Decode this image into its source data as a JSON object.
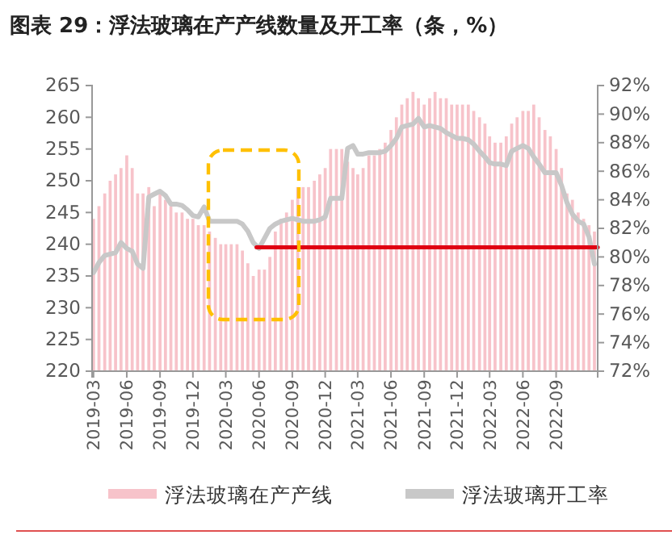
{
  "chart_data": {
    "type": "bar",
    "title": "图表 29：浮法玻璃在产产线数量及开工率（条，%）",
    "x": [
      "2019-03-01",
      "2019-03-16",
      "2019-04-01",
      "2019-04-16",
      "2019-05-01",
      "2019-05-16",
      "2019-06-01",
      "2019-06-16",
      "2019-07-01",
      "2019-07-16",
      "2019-08-01",
      "2019-08-16",
      "2019-09-01",
      "2019-09-16",
      "2019-10-01",
      "2019-10-16",
      "2019-11-01",
      "2019-11-16",
      "2019-12-01",
      "2019-12-16",
      "2020-01-01",
      "2020-01-16",
      "2020-02-01",
      "2020-02-16",
      "2020-03-01",
      "2020-03-16",
      "2020-04-01",
      "2020-04-16",
      "2020-05-01",
      "2020-05-16",
      "2020-06-01",
      "2020-06-16",
      "2020-07-01",
      "2020-07-16",
      "2020-08-01",
      "2020-08-16",
      "2020-09-01",
      "2020-09-16",
      "2020-10-01",
      "2020-10-16",
      "2020-11-01",
      "2020-11-16",
      "2020-12-01",
      "2020-12-16",
      "2021-01-01",
      "2021-01-16",
      "2021-02-01",
      "2021-02-16",
      "2021-03-01",
      "2021-03-16",
      "2021-04-01",
      "2021-04-16",
      "2021-05-01",
      "2021-05-16",
      "2021-06-01",
      "2021-06-16",
      "2021-07-01",
      "2021-07-16",
      "2021-08-01",
      "2021-08-16",
      "2021-09-01",
      "2021-09-16",
      "2021-10-01",
      "2021-10-16",
      "2021-11-01",
      "2021-11-16",
      "2021-12-01",
      "2021-12-16",
      "2022-01-01",
      "2022-01-16",
      "2022-02-01",
      "2022-02-16",
      "2022-03-01",
      "2022-03-16",
      "2022-04-01",
      "2022-04-16",
      "2022-05-01",
      "2022-05-16",
      "2022-06-01",
      "2022-06-16",
      "2022-07-01",
      "2022-07-16",
      "2022-08-01",
      "2022-08-16",
      "2022-09-01",
      "2022-09-16",
      "2022-10-01",
      "2022-10-16",
      "2022-11-01",
      "2022-11-16",
      "2022-12-01",
      "2022-12-16"
    ],
    "series": [
      {
        "name": "浮法玻璃在产产线",
        "color": "#f7c3ca",
        "values": [
          244,
          246,
          248,
          250,
          251,
          252,
          254,
          252,
          248,
          248,
          249,
          246,
          248,
          247,
          246,
          245,
          245,
          244,
          244,
          243,
          243,
          242,
          241,
          240,
          240,
          240,
          240,
          239,
          237,
          235,
          236,
          236,
          238,
          242,
          244,
          245,
          247,
          249,
          249,
          249,
          250,
          251,
          252,
          255,
          255,
          255,
          253,
          252,
          251,
          252,
          254,
          254,
          255,
          256,
          258,
          260,
          262,
          263,
          264,
          263,
          262,
          263,
          264,
          263,
          263,
          262,
          262,
          262,
          262,
          261,
          260,
          259,
          257,
          256,
          256,
          257,
          259,
          260,
          261,
          261,
          262,
          260,
          258,
          257,
          255,
          252,
          248,
          247,
          245,
          244,
          243,
          242
        ]
      },
      {
        "name": "浮法玻璃开工率",
        "type": "line",
        "axis": "y2",
        "color": "#c8c8c8",
        "values": [
          78.9,
          79.6,
          80.1,
          80.2,
          80.3,
          81.0,
          80.6,
          80.4,
          79.5,
          79.2,
          84.2,
          84.4,
          84.6,
          84.3,
          83.7,
          83.7,
          83.6,
          83.3,
          82.9,
          82.8,
          83.5,
          82.5,
          82.5,
          82.5,
          82.5,
          82.5,
          82.5,
          82.3,
          81.8,
          81.0,
          80.6,
          81.3,
          82.0,
          82.3,
          82.5,
          82.6,
          82.7,
          82.6,
          82.5,
          82.5,
          82.5,
          82.6,
          82.8,
          84.1,
          84.1,
          84.1,
          87.6,
          87.8,
          87.2,
          87.2,
          87.3,
          87.3,
          87.3,
          87.4,
          87.8,
          88.3,
          89.1,
          89.2,
          89.3,
          89.7,
          89.1,
          89.2,
          89.1,
          89.0,
          88.7,
          88.5,
          88.3,
          88.3,
          88.2,
          87.9,
          87.4,
          87.0,
          86.6,
          86.5,
          86.5,
          86.4,
          87.4,
          87.6,
          87.8,
          87.6,
          87.0,
          86.5,
          85.9,
          85.9,
          85.9,
          85.0,
          83.8,
          83.0,
          82.5,
          82.3,
          81.4,
          79.5
        ]
      },
      {
        "type": "line",
        "color": "#e00012",
        "x": [
          "2020-05-25",
          "2022-12-25"
        ],
        "values": [
          239.5,
          239.5
        ]
      }
    ],
    "xlim": [
      "2019-02-25",
      "2022-12-25"
    ],
    "xticks": [
      "2019-03",
      "2019-06",
      "2019-09",
      "2019-12",
      "2020-03",
      "2020-06",
      "2020-09",
      "2020-12",
      "2021-03",
      "2021-06",
      "2021-09",
      "2021-12",
      "2022-03",
      "2022-06",
      "2022-09"
    ],
    "ylim": [
      220,
      265
    ],
    "yticks": [
      220,
      225,
      230,
      235,
      240,
      245,
      250,
      255,
      260,
      265
    ],
    "y2lim": [
      72,
      92
    ],
    "y2ticks": [
      {
        "value": 72,
        "label": "72%"
      },
      {
        "value": 74,
        "label": "74%"
      },
      {
        "value": 76,
        "label": "76%"
      },
      {
        "value": 78,
        "label": "78%"
      },
      {
        "value": 80,
        "label": "80%"
      },
      {
        "value": 82,
        "label": "82%"
      },
      {
        "value": 84,
        "label": "84%"
      },
      {
        "value": 86,
        "label": "86%"
      },
      {
        "value": 88,
        "label": "88%"
      },
      {
        "value": 90,
        "label": "90%"
      },
      {
        "value": 92,
        "label": "92%"
      }
    ],
    "legend": "bottom",
    "grid": false
  }
}
